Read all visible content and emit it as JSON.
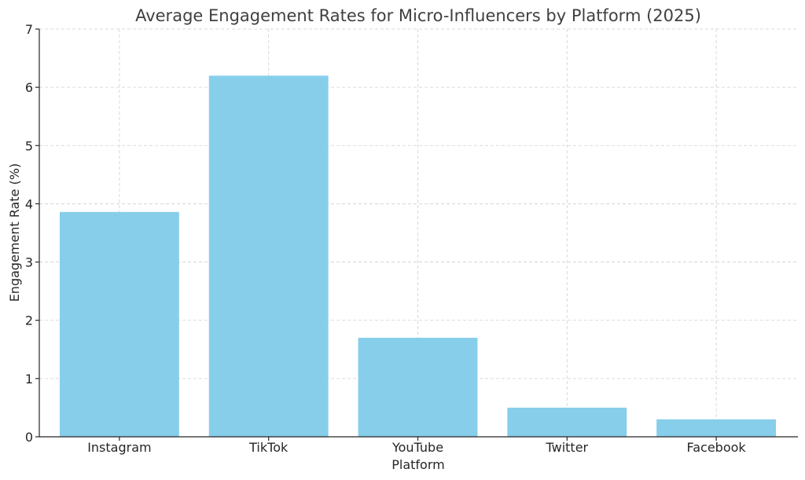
{
  "chart_data": {
    "type": "bar",
    "title": "Average Engagement Rates for Micro-Influencers by Platform (2025)",
    "xlabel": "Platform",
    "ylabel": "Engagement Rate (%)",
    "categories": [
      "Instagram",
      "TikTok",
      "YouTube",
      "Twitter",
      "Facebook"
    ],
    "values": [
      3.86,
      6.2,
      1.7,
      0.5,
      0.3
    ],
    "ylim": [
      0,
      7
    ],
    "yticks": [
      "0",
      "1",
      "2",
      "3",
      "4",
      "5",
      "6",
      "7"
    ],
    "grid": true,
    "bar_color": "#87CEEB"
  }
}
